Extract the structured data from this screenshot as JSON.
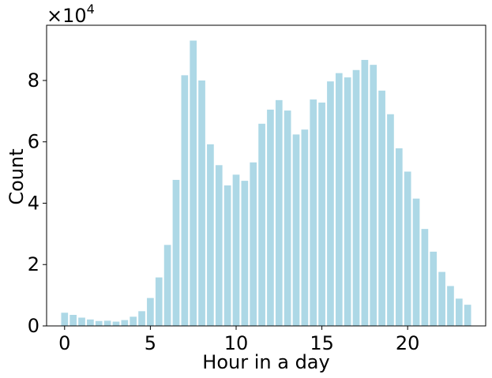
{
  "chart_data": {
    "type": "bar",
    "title": "",
    "xlabel": "Hour in a day",
    "ylabel": "Count",
    "y_scale_note": "×10",
    "y_scale_exponent": "4",
    "x": [
      0.0,
      0.5,
      1.0,
      1.5,
      2.0,
      2.5,
      3.0,
      3.5,
      4.0,
      4.5,
      5.0,
      5.5,
      6.0,
      6.5,
      7.0,
      7.5,
      8.0,
      8.5,
      9.0,
      9.5,
      10.0,
      10.5,
      11.0,
      11.5,
      12.0,
      12.5,
      13.0,
      13.5,
      14.0,
      14.5,
      15.0,
      15.5,
      16.0,
      16.5,
      17.0,
      17.5,
      18.0,
      18.5,
      19.0,
      19.5,
      20.0,
      20.5,
      21.0,
      21.5,
      22.0,
      22.5,
      23.0,
      23.5
    ],
    "values": [
      4300,
      3600,
      2700,
      2100,
      1600,
      1700,
      1400,
      1900,
      3000,
      4800,
      9100,
      15800,
      26400,
      47600,
      81700,
      93000,
      80000,
      59200,
      52400,
      45800,
      49300,
      47300,
      53300,
      65900,
      70500,
      73600,
      70200,
      62400,
      64000,
      73800,
      72800,
      79700,
      82400,
      81000,
      83400,
      86700,
      85100,
      76700,
      69000,
      57900,
      50300,
      41500,
      31600,
      24200,
      17600,
      13000,
      8900,
      6900
    ],
    "bar_width": 0.4,
    "xlim": [
      -1.05,
      24.55
    ],
    "ylim": [
      0,
      98000
    ],
    "x_ticks": [
      0,
      5,
      10,
      15,
      20
    ],
    "x_tick_labels": [
      "0",
      "5",
      "10",
      "15",
      "20"
    ],
    "y_ticks": [
      0,
      20000,
      40000,
      60000,
      80000
    ],
    "y_tick_labels": [
      "0",
      "2",
      "4",
      "6",
      "8"
    ],
    "bar_color": "#add8e6",
    "grid": false,
    "legend": "none"
  }
}
